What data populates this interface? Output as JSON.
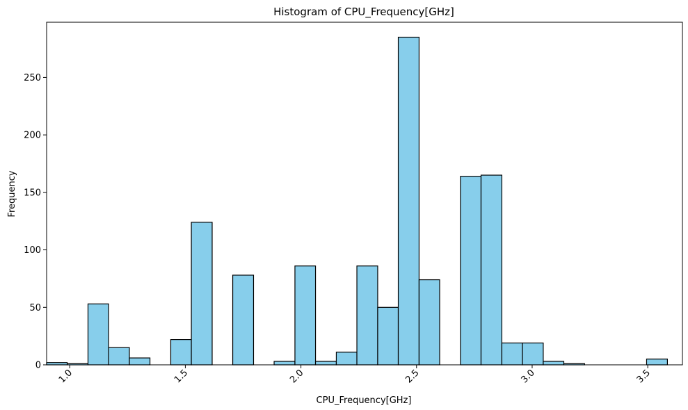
{
  "chart_data": {
    "type": "bar",
    "title": "Histogram of CPU_Frequency[GHz]",
    "xlabel": "CPU_Frequency[GHz]",
    "ylabel": "Frequency",
    "bar_color": "#87ceeb",
    "edge_color": "#000000",
    "xlim": [
      0.9,
      3.65
    ],
    "ylim": [
      0,
      298
    ],
    "bins": [
      {
        "x0": 0.9,
        "x1": 0.989,
        "count": 2
      },
      {
        "x0": 0.989,
        "x1": 1.079,
        "count": 1
      },
      {
        "x0": 1.079,
        "x1": 1.168,
        "count": 53
      },
      {
        "x0": 1.168,
        "x1": 1.258,
        "count": 15
      },
      {
        "x0": 1.258,
        "x1": 1.347,
        "count": 6
      },
      {
        "x0": 1.347,
        "x1": 1.437,
        "count": 0
      },
      {
        "x0": 1.437,
        "x1": 1.526,
        "count": 22
      },
      {
        "x0": 1.526,
        "x1": 1.616,
        "count": 124
      },
      {
        "x0": 1.616,
        "x1": 1.705,
        "count": 0
      },
      {
        "x0": 1.705,
        "x1": 1.795,
        "count": 78
      },
      {
        "x0": 1.795,
        "x1": 1.884,
        "count": 0
      },
      {
        "x0": 1.884,
        "x1": 1.974,
        "count": 3
      },
      {
        "x0": 1.974,
        "x1": 2.063,
        "count": 86
      },
      {
        "x0": 2.063,
        "x1": 2.153,
        "count": 3
      },
      {
        "x0": 2.153,
        "x1": 2.242,
        "count": 11
      },
      {
        "x0": 2.242,
        "x1": 2.332,
        "count": 86
      },
      {
        "x0": 2.332,
        "x1": 2.421,
        "count": 50
      },
      {
        "x0": 2.421,
        "x1": 2.511,
        "count": 285
      },
      {
        "x0": 2.511,
        "x1": 2.6,
        "count": 74
      },
      {
        "x0": 2.6,
        "x1": 2.69,
        "count": 0
      },
      {
        "x0": 2.69,
        "x1": 2.779,
        "count": 164
      },
      {
        "x0": 2.779,
        "x1": 2.869,
        "count": 165
      },
      {
        "x0": 2.869,
        "x1": 2.958,
        "count": 19
      },
      {
        "x0": 2.958,
        "x1": 3.048,
        "count": 19
      },
      {
        "x0": 3.048,
        "x1": 3.137,
        "count": 3
      },
      {
        "x0": 3.137,
        "x1": 3.227,
        "count": 1
      },
      {
        "x0": 3.227,
        "x1": 3.316,
        "count": 0
      },
      {
        "x0": 3.316,
        "x1": 3.406,
        "count": 0
      },
      {
        "x0": 3.406,
        "x1": 3.495,
        "count": 0
      },
      {
        "x0": 3.495,
        "x1": 3.585,
        "count": 5
      }
    ],
    "x_ticks": [
      "1.0",
      "1.5",
      "2.0",
      "2.5",
      "3.0",
      "3.5"
    ],
    "x_tick_values": [
      1.0,
      1.5,
      2.0,
      2.5,
      3.0,
      3.5
    ],
    "y_ticks": [
      "0",
      "50",
      "100",
      "150",
      "200",
      "250"
    ],
    "y_tick_values": [
      0,
      50,
      100,
      150,
      200,
      250
    ],
    "grid": false,
    "legend": "none"
  }
}
